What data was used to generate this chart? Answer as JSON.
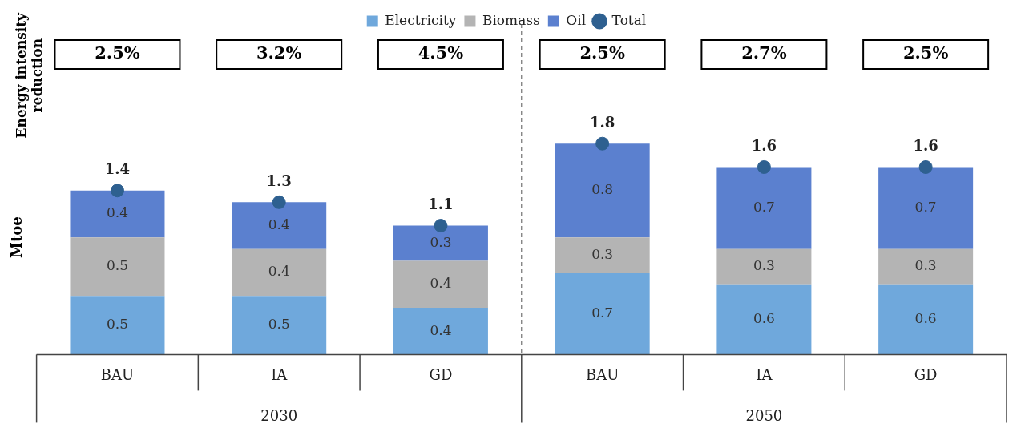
{
  "chart_data": {
    "type": "bar",
    "stacked": true,
    "ylabel": "Mtoe",
    "categories": [
      "BAU",
      "IA",
      "GD",
      "BAU",
      "IA",
      "GD"
    ],
    "series": [
      {
        "name": "Electricity",
        "color": "#6fa8dc",
        "values": [
          0.5,
          0.5,
          0.4,
          0.7,
          0.6,
          0.6
        ]
      },
      {
        "name": "Biomass",
        "color": "#b4b4b4",
        "values": [
          0.5,
          0.4,
          0.4,
          0.3,
          0.3,
          0.3
        ]
      },
      {
        "name": "Oil",
        "color": "#5b80cf",
        "values": [
          0.4,
          0.4,
          0.3,
          0.8,
          0.7,
          0.7
        ]
      },
      {
        "name": "Total",
        "type": "scatter",
        "color": "#2e6090",
        "values": [
          1.4,
          1.3,
          1.1,
          1.8,
          1.6,
          1.6
        ]
      }
    ],
    "data_labels": true,
    "legend": "top",
    "grid": false,
    "tick_labels": "x",
    "marker": "circle",
    "annotations": [
      "2.5%",
      "3.2%",
      "4.5%",
      "2.5%",
      "2.7%",
      "2.5%",
      "2030",
      "2050",
      "Energy intensity reduction"
    ]
  }
}
